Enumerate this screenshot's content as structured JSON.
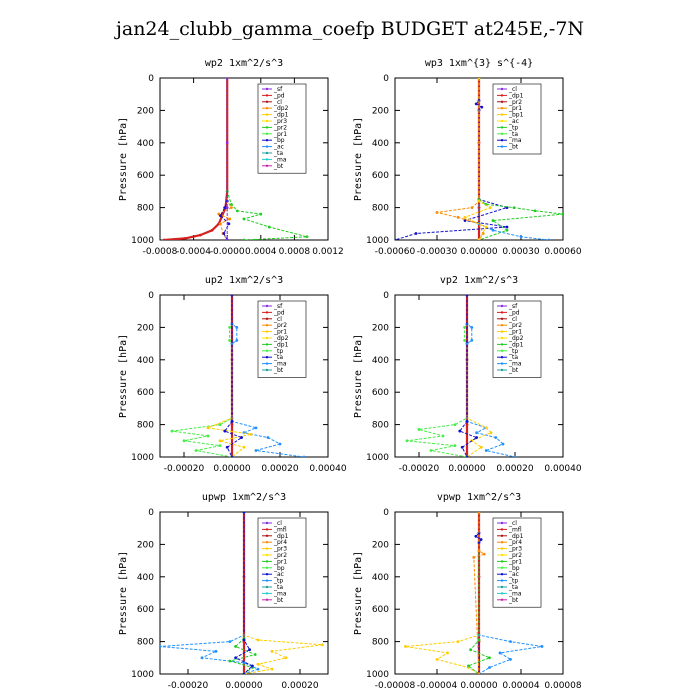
{
  "page": {
    "title": "jan24_clubb_gamma_coefp  BUDGET at245E,-7N"
  },
  "colors": {
    "red": "#d62020",
    "purple": "#8a2be2",
    "dark_red": "#b01010",
    "orange": "#ff8c00",
    "gold": "#ffcc00",
    "yellow": "#ffe000",
    "green": "#22cc22",
    "lime": "#44ee44",
    "blue": "#1010cc",
    "sky": "#2090ff",
    "teal": "#20a0a0",
    "cyan": "#22cccc",
    "magenta": "#cc22aa"
  },
  "chart_data": [
    {
      "type": "line",
      "title": "wp2   1xm^2/s^3",
      "ylabel": "Pressure [hPa]",
      "ylim": [
        1000,
        0
      ],
      "yticks": [
        0,
        200,
        400,
        600,
        800,
        1000
      ],
      "xlim": [
        -0.0008,
        0.0012
      ],
      "xticks": [
        -0.0008,
        -0.0004,
        0.0,
        0.0004,
        0.0008,
        0.0012
      ],
      "xtick_labels": [
        "-0.0008",
        "-0.0004",
        "-0.0000",
        "0.0004",
        "0.0008",
        "0.0012"
      ],
      "legend": [
        "_sf",
        "_pd",
        "_cl",
        "_dp2",
        "_dp1",
        "_pr3",
        "_pr2",
        "_pr1",
        "_bp",
        "_ac",
        "_ta",
        "_ma",
        "_bt"
      ],
      "series": [
        {
          "color": "#d62020",
          "x": [
            0,
            0,
            -2e-05,
            -6e-05,
            -0.0001,
            -0.00018,
            -0.00032,
            -0.0005,
            -0.00075
          ],
          "y": [
            0,
            700,
            800,
            850,
            900,
            940,
            970,
            990,
            1000
          ]
        },
        {
          "color": "#22cc22",
          "x": [
            0,
            0,
            5e-05,
            0.00012,
            0.0004,
            0.0002,
            0.0005,
            0.00095,
            0.0002
          ],
          "y": [
            0,
            700,
            780,
            820,
            840,
            870,
            920,
            980,
            1000
          ]
        },
        {
          "color": "#ff8c00",
          "x": [
            0,
            0,
            5e-05,
            -0.0001,
            3e-05,
            -8e-05,
            -5e-05,
            0
          ],
          "y": [
            0,
            760,
            800,
            840,
            870,
            900,
            960,
            1000
          ]
        },
        {
          "color": "#1010cc",
          "x": [
            0,
            0,
            -3e-05,
            -8e-05,
            2e-05,
            -4e-05,
            0
          ],
          "y": [
            0,
            760,
            800,
            850,
            900,
            960,
            1000
          ]
        },
        {
          "color": "#8a2be2",
          "x": [
            0,
            0,
            0,
            0
          ],
          "y": [
            0,
            400,
            800,
            1000
          ]
        }
      ]
    },
    {
      "type": "line",
      "title": "wp3   1xm^{3} s^{-4}",
      "ylabel": "Pressure [hPa]",
      "ylim": [
        1000,
        0
      ],
      "yticks": [
        0,
        200,
        400,
        600,
        800,
        1000
      ],
      "xlim": [
        -0.0006,
        0.0006
      ],
      "xticks": [
        -0.0006,
        -0.0003,
        0.0,
        0.0003,
        0.0006
      ],
      "xtick_labels": [
        "-0.00060",
        "-0.00030",
        "0.00000",
        "0.00030",
        "0.00060"
      ],
      "legend": [
        "_cl",
        "_dp1",
        "_pr2",
        "_pr1",
        "_bp1",
        "_ac",
        "_tp",
        "_ta",
        "_ma",
        "_bt"
      ],
      "series": [
        {
          "color": "#d62020",
          "x": [
            0,
            0,
            0,
            0
          ],
          "y": [
            0,
            400,
            800,
            1000
          ]
        },
        {
          "color": "#1010cc",
          "x": [
            0,
            0,
            -2e-05,
            2e-05,
            0,
            0,
            0.0002,
            -0.0001,
            0.0002,
            -0.00045,
            -0.0006
          ],
          "y": [
            0,
            140,
            160,
            180,
            200,
            750,
            800,
            880,
            920,
            960,
            1000
          ]
        },
        {
          "color": "#22cc22",
          "x": [
            0,
            0,
            5e-05,
            0.00025,
            0.0004,
            0.0006,
            0.0001,
            0.0002,
            0
          ],
          "y": [
            0,
            750,
            780,
            800,
            820,
            840,
            880,
            940,
            1000
          ]
        },
        {
          "color": "#ff8c00",
          "x": [
            0,
            0,
            -5e-05,
            -0.0003,
            -0.00015,
            0,
            3e-05,
            0
          ],
          "y": [
            0,
            760,
            800,
            830,
            860,
            900,
            960,
            1000
          ]
        },
        {
          "color": "#2090ff",
          "x": [
            0,
            0,
            0.0001,
            0.0003,
            0.0005
          ],
          "y": [
            0,
            900,
            940,
            980,
            1000
          ]
        },
        {
          "color": "#ffcc00",
          "x": [
            0,
            0,
            8e-05,
            -0.0001,
            5e-05,
            0
          ],
          "y": [
            0,
            760,
            800,
            860,
            920,
            1000
          ]
        }
      ]
    },
    {
      "type": "line",
      "title": "up2   1xm^2/s^3",
      "ylabel": "Pressure [hPa]",
      "ylim": [
        1000,
        0
      ],
      "yticks": [
        0,
        200,
        400,
        600,
        800,
        1000
      ],
      "xlim": [
        -0.0003,
        0.0004
      ],
      "xticks": [
        -0.0002,
        0.0,
        0.0002,
        0.0004
      ],
      "xtick_labels": [
        "-0.00020",
        "0.00000",
        "0.00020",
        "0.00040"
      ],
      "legend": [
        "_sf",
        "_pd",
        "_cl",
        "_pr2",
        "_pr1",
        "_dp2",
        "_dp1",
        "_tp",
        "_ta",
        "_ma",
        "_bt"
      ],
      "series": [
        {
          "color": "#d62020",
          "x": [
            0,
            0,
            0,
            0
          ],
          "y": [
            0,
            400,
            800,
            1000
          ]
        },
        {
          "color": "#44ee44",
          "x": [
            0,
            0,
            -1e-05,
            -1e-05,
            0,
            0,
            -5e-05,
            -0.00025,
            -0.0001,
            -0.0002,
            -5e-05,
            -0.00015,
            0
          ],
          "y": [
            0,
            180,
            200,
            280,
            300,
            760,
            800,
            840,
            870,
            900,
            930,
            960,
            1000
          ]
        },
        {
          "color": "#2090ff",
          "x": [
            0,
            0,
            2e-05,
            2e-05,
            0,
            0,
            0.0001,
            5e-05,
            0.00015,
            0.0002,
            0.0001,
            0.0003
          ],
          "y": [
            0,
            180,
            200,
            280,
            300,
            780,
            820,
            850,
            880,
            920,
            960,
            1000
          ]
        },
        {
          "color": "#ffcc00",
          "x": [
            0,
            0,
            -0.0001,
            8e-05,
            -5e-05,
            5e-05,
            0
          ],
          "y": [
            0,
            760,
            820,
            860,
            900,
            940,
            1000
          ]
        },
        {
          "color": "#1010cc",
          "x": [
            0,
            0,
            -3e-05,
            4e-05,
            -2e-05,
            0
          ],
          "y": [
            0,
            780,
            840,
            880,
            940,
            1000
          ]
        }
      ]
    },
    {
      "type": "line",
      "title": "vp2   1xm^2/s^3",
      "ylabel": "Pressure [hPa]",
      "ylim": [
        1000,
        0
      ],
      "yticks": [
        0,
        200,
        400,
        600,
        800,
        1000
      ],
      "xlim": [
        -0.0003,
        0.0004
      ],
      "xticks": [
        -0.0002,
        0.0,
        0.0002,
        0.0004
      ],
      "xtick_labels": [
        "-0.00020",
        "0.00000",
        "0.00020",
        "0.00040"
      ],
      "legend": [
        "_sf",
        "_pd",
        "_cl",
        "_pr2",
        "_pr1",
        "_dp2",
        "_dp1",
        "_tp",
        "_ta",
        "_ma",
        "_bt"
      ],
      "series": [
        {
          "color": "#d62020",
          "x": [
            0,
            0,
            0,
            0
          ],
          "y": [
            0,
            400,
            800,
            1000
          ]
        },
        {
          "color": "#44ee44",
          "x": [
            0,
            0,
            -1e-05,
            -1e-05,
            0,
            0,
            -5e-05,
            -0.0002,
            -0.0001,
            -0.00025,
            -5e-05,
            -0.00015,
            0
          ],
          "y": [
            0,
            180,
            200,
            280,
            300,
            760,
            800,
            830,
            870,
            900,
            930,
            960,
            1000
          ]
        },
        {
          "color": "#2090ff",
          "x": [
            0,
            0,
            2e-05,
            2e-05,
            0,
            0,
            8e-05,
            4e-05,
            0.00012,
            0.00015,
            8e-05,
            0.0002
          ],
          "y": [
            0,
            180,
            200,
            280,
            300,
            780,
            820,
            850,
            880,
            920,
            960,
            1000
          ]
        },
        {
          "color": "#ffcc00",
          "x": [
            0,
            0,
            8e-05,
            0.0001,
            2e-05,
            6e-05,
            0
          ],
          "y": [
            0,
            760,
            820,
            850,
            900,
            940,
            1000
          ]
        },
        {
          "color": "#1010cc",
          "x": [
            0,
            0,
            -3e-05,
            4e-05,
            -2e-05,
            0
          ],
          "y": [
            0,
            780,
            840,
            880,
            940,
            1000
          ]
        }
      ]
    },
    {
      "type": "line",
      "title": "upwp   1xm^2/s^3",
      "ylabel": "Pressure [hPa]",
      "ylim": [
        1000,
        0
      ],
      "yticks": [
        0,
        200,
        400,
        600,
        800,
        1000
      ],
      "xlim": [
        -0.0003,
        0.0003
      ],
      "xticks": [
        -0.0002,
        0.0,
        0.0002
      ],
      "xtick_labels": [
        "-0.00020",
        "0.00000",
        "0.00020"
      ],
      "legend": [
        "_cl",
        "_mfl",
        "_dp1",
        "_pr4",
        "_pr3",
        "_pr2",
        "_pr1",
        "_bp",
        "_ac",
        "_tp",
        "_ta",
        "_ma",
        "_bt"
      ],
      "series": [
        {
          "color": "#d62020",
          "x": [
            0,
            0,
            0,
            0
          ],
          "y": [
            0,
            400,
            800,
            1000
          ]
        },
        {
          "color": "#2090ff",
          "x": [
            0,
            0,
            -5e-05,
            -0.0003,
            -0.0001,
            -0.00015,
            0,
            5e-05,
            0
          ],
          "y": [
            0,
            760,
            800,
            830,
            860,
            900,
            930,
            970,
            1000
          ]
        },
        {
          "color": "#ffcc00",
          "x": [
            0,
            0,
            5e-05,
            0.00028,
            0.0001,
            0.00015,
            5e-05,
            0.0001,
            0
          ],
          "y": [
            0,
            760,
            790,
            820,
            860,
            900,
            940,
            970,
            1000
          ]
        },
        {
          "color": "#22cc22",
          "x": [
            0,
            0,
            -3e-05,
            4e-05,
            -5e-05,
            3e-05,
            0
          ],
          "y": [
            0,
            780,
            830,
            880,
            920,
            960,
            1000
          ]
        },
        {
          "color": "#1010cc",
          "x": [
            0,
            0,
            2e-05,
            -3e-05,
            3e-05,
            0
          ],
          "y": [
            0,
            790,
            850,
            900,
            950,
            1000
          ]
        }
      ]
    },
    {
      "type": "line",
      "title": "vpwp   1xm^2/s^3",
      "ylabel": "Pressure [hPa]",
      "ylim": [
        1000,
        0
      ],
      "yticks": [
        0,
        200,
        400,
        600,
        800,
        1000
      ],
      "xlim": [
        -8e-05,
        8e-05
      ],
      "xticks": [
        -8e-05,
        -4e-05,
        0.0,
        4e-05,
        8e-05
      ],
      "xtick_labels": [
        "-0.00008",
        "-0.00004",
        "0.00000",
        "0.00004",
        "0.00008"
      ],
      "legend": [
        "_cl",
        "_mfl",
        "_dp1",
        "_pr4",
        "_pr3",
        "_pr2",
        "_pr1",
        "_bp",
        "_ac",
        "_tp",
        "_ta",
        "_ma",
        "_bt"
      ],
      "series": [
        {
          "color": "#d62020",
          "x": [
            0,
            0,
            0,
            0
          ],
          "y": [
            0,
            400,
            800,
            1000
          ]
        },
        {
          "color": "#1010cc",
          "x": [
            0,
            0,
            -3e-06,
            2e-06,
            0,
            0
          ],
          "y": [
            0,
            130,
            150,
            170,
            190,
            1000
          ]
        },
        {
          "color": "#ffcc00",
          "x": [
            0,
            0,
            -2e-05,
            -7e-05,
            -3e-05,
            -4e-05,
            -1e-05,
            0
          ],
          "y": [
            0,
            760,
            800,
            830,
            870,
            910,
            960,
            1000
          ]
        },
        {
          "color": "#2090ff",
          "x": [
            0,
            0,
            3e-05,
            6e-05,
            2e-05,
            3e-05,
            1e-05,
            0
          ],
          "y": [
            0,
            760,
            800,
            830,
            870,
            910,
            960,
            1000
          ]
        },
        {
          "color": "#22cc22",
          "x": [
            0,
            0,
            -8e-06,
            1e-05,
            -1e-05,
            0
          ],
          "y": [
            0,
            790,
            850,
            900,
            950,
            1000
          ]
        },
        {
          "color": "#ff8c00",
          "x": [
            0,
            0,
            5e-06,
            -5e-06,
            0
          ],
          "y": [
            0,
            240,
            260,
            280,
            1000
          ]
        }
      ]
    }
  ]
}
